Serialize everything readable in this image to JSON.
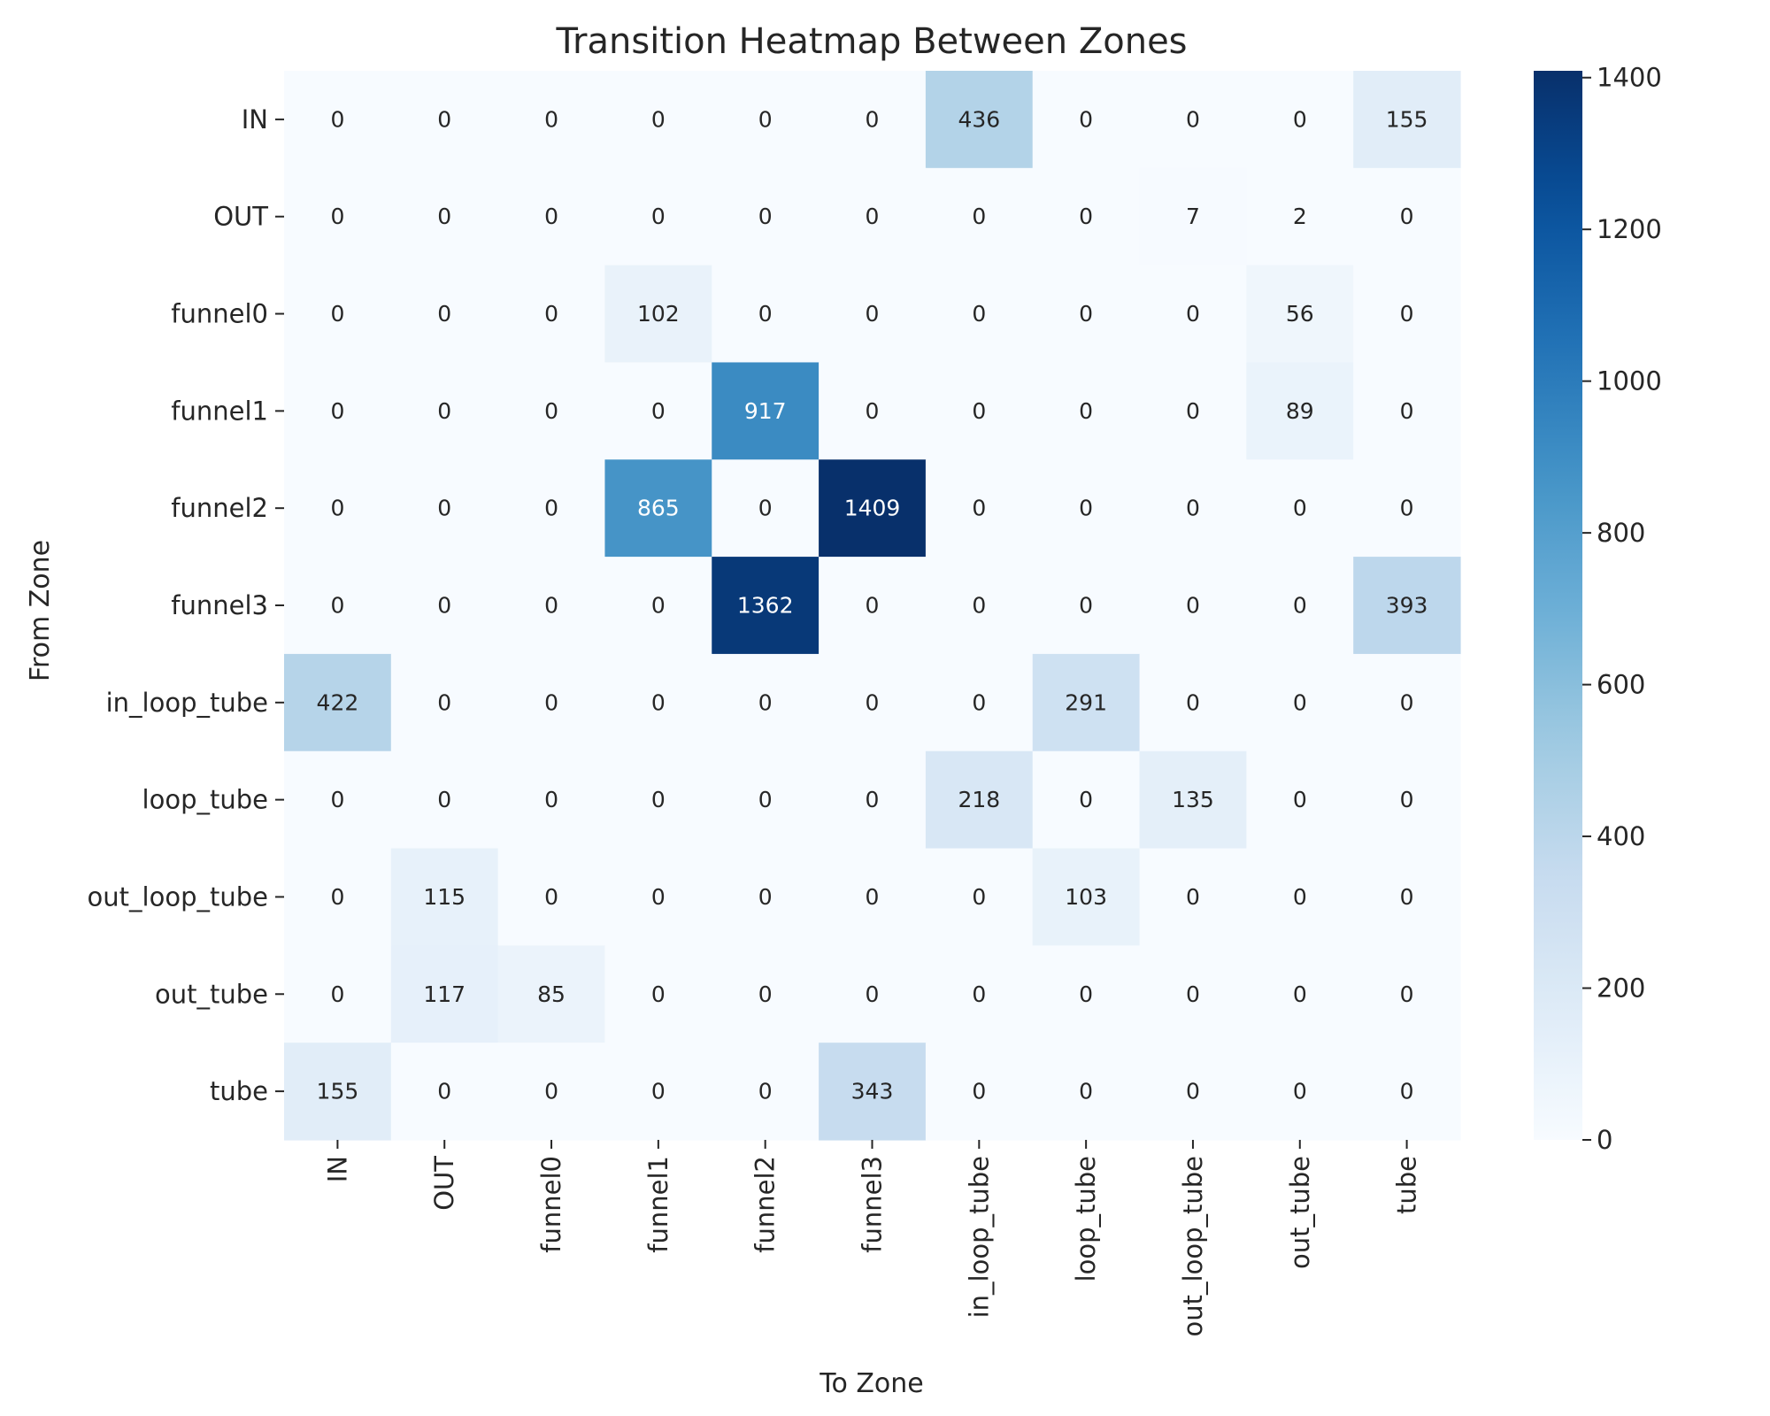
{
  "chart_data": {
    "type": "heatmap",
    "title": "Transition Heatmap Between Zones",
    "xlabel": "To Zone",
    "ylabel": "From Zone",
    "rows": [
      "IN",
      "OUT",
      "funnel0",
      "funnel1",
      "funnel2",
      "funnel3",
      "in_loop_tube",
      "loop_tube",
      "out_loop_tube",
      "out_tube",
      "tube"
    ],
    "columns": [
      "IN",
      "OUT",
      "funnel0",
      "funnel1",
      "funnel2",
      "funnel3",
      "in_loop_tube",
      "loop_tube",
      "out_loop_tube",
      "out_tube",
      "tube"
    ],
    "values": [
      [
        0,
        0,
        0,
        0,
        0,
        0,
        436,
        0,
        0,
        0,
        155
      ],
      [
        0,
        0,
        0,
        0,
        0,
        0,
        0,
        0,
        7,
        2,
        0
      ],
      [
        0,
        0,
        0,
        102,
        0,
        0,
        0,
        0,
        0,
        56,
        0
      ],
      [
        0,
        0,
        0,
        0,
        917,
        0,
        0,
        0,
        0,
        89,
        0
      ],
      [
        0,
        0,
        0,
        865,
        0,
        1409,
        0,
        0,
        0,
        0,
        0
      ],
      [
        0,
        0,
        0,
        0,
        1362,
        0,
        0,
        0,
        0,
        0,
        393
      ],
      [
        422,
        0,
        0,
        0,
        0,
        0,
        0,
        291,
        0,
        0,
        0
      ],
      [
        0,
        0,
        0,
        0,
        0,
        0,
        218,
        0,
        135,
        0,
        0
      ],
      [
        0,
        115,
        0,
        0,
        0,
        0,
        0,
        103,
        0,
        0,
        0
      ],
      [
        0,
        117,
        85,
        0,
        0,
        0,
        0,
        0,
        0,
        0,
        0
      ],
      [
        155,
        0,
        0,
        0,
        0,
        343,
        0,
        0,
        0,
        0,
        0
      ]
    ],
    "colormap": "Blues",
    "vmin": 0,
    "vmax": 1409,
    "colorbar_ticks": [
      0,
      200,
      400,
      600,
      800,
      1000,
      1200,
      1400
    ],
    "grid": false
  }
}
